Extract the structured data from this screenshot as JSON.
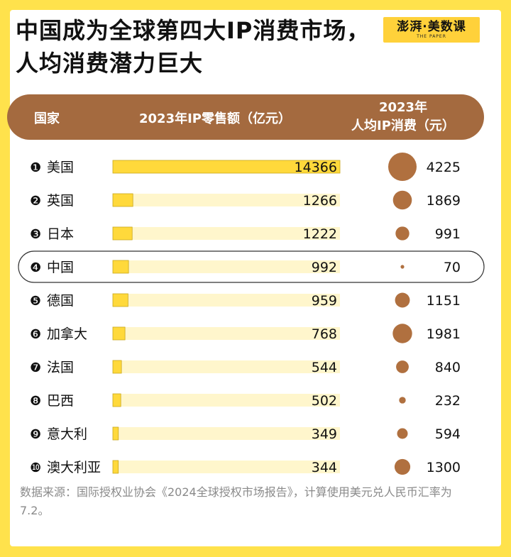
{
  "title": "中国成为全球第四大IP消费市场，人均消费潜力巨大",
  "logo": {
    "text": "澎湃·美数课",
    "sub": "THE PAPER"
  },
  "header": {
    "country": "国家",
    "retail": "2023年IP零售额（亿元）",
    "percap_line1": "2023年",
    "percap_line2": "人均IP消费（元）"
  },
  "source": "数据来源：国际授权业协会《2024全球授权市场报告》，计算使用美元兑人民币汇率为7.2。",
  "colors": {
    "background": "#FFE24C",
    "bar_fill": "#FFD93B",
    "bar_track": "#FFF6CC",
    "bubble": "#B0703F",
    "header": "#A46A3F"
  },
  "chart_data": {
    "type": "bar",
    "categories": [
      "美国",
      "英国",
      "日本",
      "中国",
      "德国",
      "加拿大",
      "法国",
      "巴西",
      "意大利",
      "澳大利亚"
    ],
    "ranks": [
      "❶",
      "❷",
      "❸",
      "❹",
      "❺",
      "❻",
      "❼",
      "❽",
      "❾",
      "❿"
    ],
    "series": [
      {
        "values": [
          14366,
          1266,
          1222,
          992,
          959,
          768,
          544,
          502,
          349,
          344
        ]
      },
      {
        "values": [
          4225,
          1869,
          991,
          70,
          1151,
          1981,
          840,
          232,
          594,
          1300
        ]
      }
    ],
    "highlight": "中国"
  }
}
